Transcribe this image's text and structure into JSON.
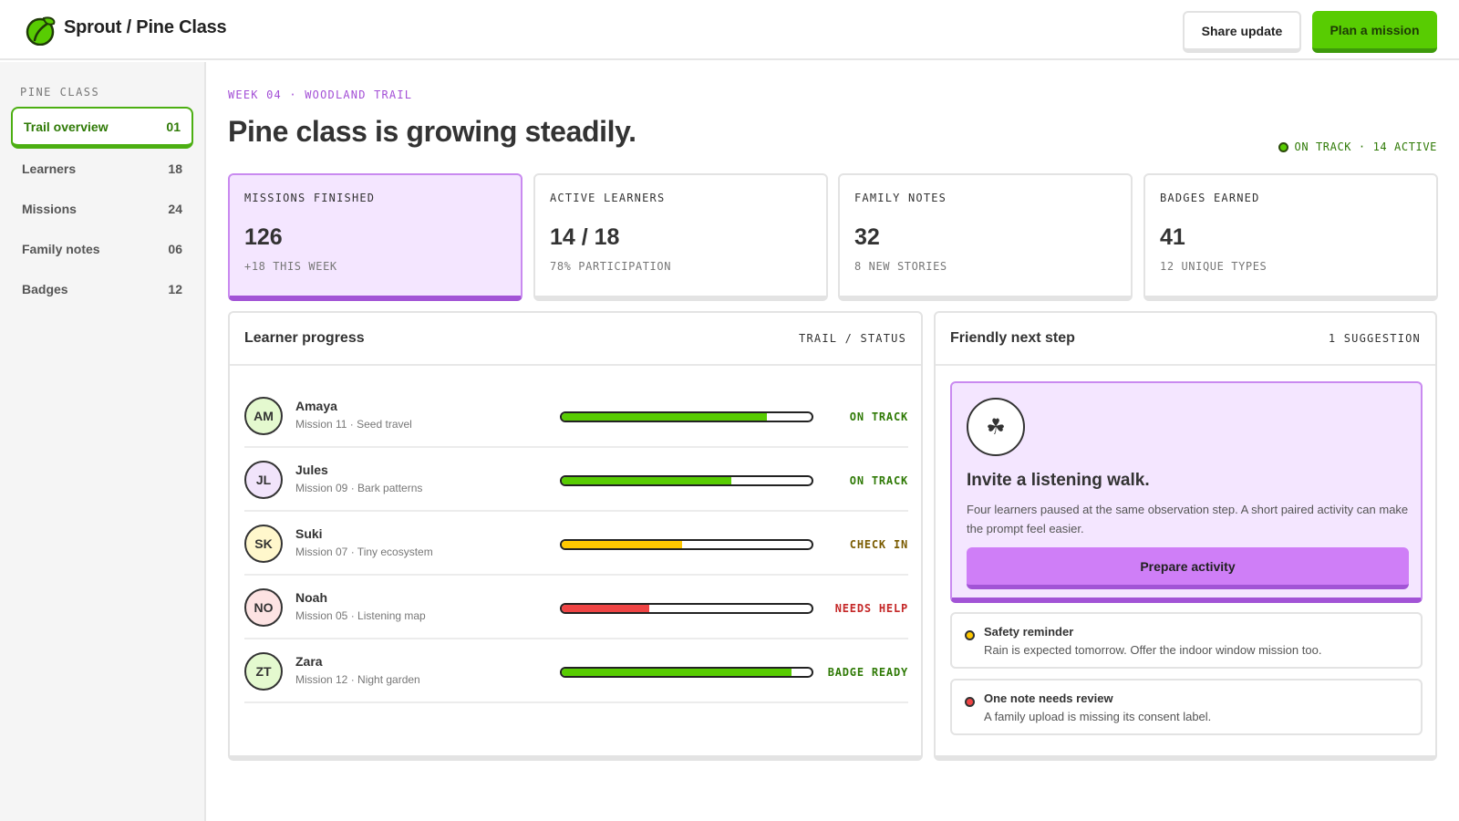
{
  "header": {
    "brand": "Sprout / Pine Class",
    "share_label": "Share update",
    "plan_label": "Plan a mission",
    "colors": {
      "brand_green": "#58cc02",
      "accent_purple": "#a254d6"
    }
  },
  "sidebar": {
    "heading": "PINE CLASS",
    "items": [
      {
        "label": "Trail overview",
        "count": "01"
      },
      {
        "label": "Learners",
        "count": "18"
      },
      {
        "label": "Missions",
        "count": "24"
      },
      {
        "label": "Family notes",
        "count": "06"
      },
      {
        "label": "Badges",
        "count": "12"
      }
    ]
  },
  "main": {
    "kicker": "WEEK 04 · WOODLAND TRAIL",
    "title": "Pine class is growing steadily.",
    "status": "ON TRACK · 14 ACTIVE",
    "stats": [
      {
        "label": "MISSIONS FINISHED",
        "value": "126",
        "sub": "+18 THIS WEEK"
      },
      {
        "label": "ACTIVE LEARNERS",
        "value": "14 / 18",
        "sub": "78% PARTICIPATION"
      },
      {
        "label": "FAMILY NOTES",
        "value": "32",
        "sub": "8 NEW STORIES"
      },
      {
        "label": "BADGES EARNED",
        "value": "41",
        "sub": "12 UNIQUE TYPES"
      }
    ]
  },
  "progress": {
    "title": "Learner progress",
    "meta": "TRAIL / STATUS",
    "learners": [
      {
        "initials": "AM",
        "name": "Amaya",
        "mission": "Mission 11 · Seed travel",
        "progress": 0.82,
        "status": "ON TRACK",
        "bar_color": "#58cc02",
        "status_color": "#2f7a06",
        "avatar_bg": "#e4f9cf"
      },
      {
        "initials": "JL",
        "name": "Jules",
        "mission": "Mission 09 · Bark patterns",
        "progress": 0.68,
        "status": "ON TRACK",
        "bar_color": "#58cc02",
        "status_color": "#2f7a06",
        "avatar_bg": "#f1e4fb"
      },
      {
        "initials": "SK",
        "name": "Suki",
        "mission": "Mission 07 · Tiny ecosystem",
        "progress": 0.48,
        "status": "CHECK IN",
        "bar_color": "#ffc800",
        "status_color": "#7a5b00",
        "avatar_bg": "#fff7cc"
      },
      {
        "initials": "NO",
        "name": "Noah",
        "mission": "Mission 05 · Listening map",
        "progress": 0.35,
        "status": "NEEDS HELP",
        "bar_color": "#ef4444",
        "status_color": "#c42727",
        "avatar_bg": "#fde3e3"
      },
      {
        "initials": "ZT",
        "name": "Zara",
        "mission": "Mission 12 · Night garden",
        "progress": 0.92,
        "status": "BADGE READY",
        "bar_color": "#58cc02",
        "status_color": "#2f7a06",
        "avatar_bg": "#e4f9cf"
      }
    ]
  },
  "next_step": {
    "title": "Friendly next step",
    "meta": "1 SUGGESTION",
    "icon": "clover-icon",
    "icon_glyph": "☘",
    "suggestion_title": "Invite a listening walk.",
    "suggestion_body": "Four learners paused at the same observation step. A short paired activity can make the prompt feel easier.",
    "button_label": "Prepare activity",
    "notes": [
      {
        "title": "Safety reminder",
        "body": "Rain is expected tomorrow. Offer the indoor window mission too.",
        "color": "#ffc800"
      },
      {
        "title": "One note needs review",
        "body": "A family upload is missing its consent label.",
        "color": "#ef4444"
      }
    ]
  }
}
